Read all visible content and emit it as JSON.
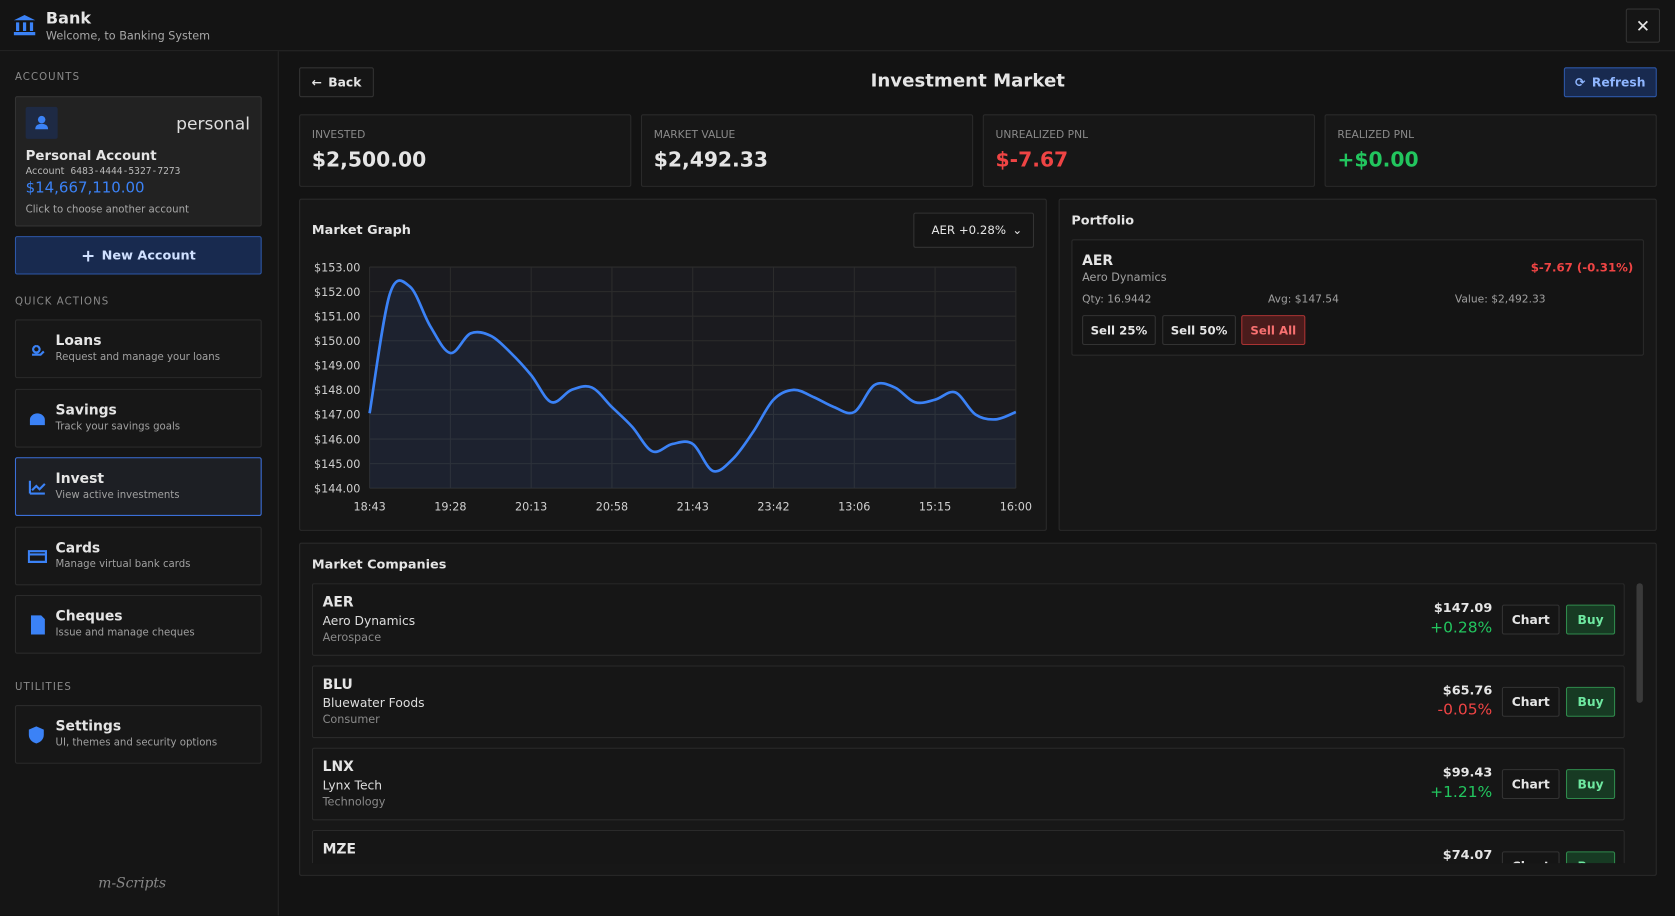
{
  "header": {
    "title": "Bank",
    "subtitle": "Welcome, to Banking System"
  },
  "sidebar": {
    "accounts_label": "ACCOUNTS",
    "account": {
      "type": "personal",
      "name": "Personal Account",
      "number_label": "Account",
      "number": "6483-4444-5327-7273",
      "balance": "$14,667,110.00",
      "hint": "Click to choose another account"
    },
    "new_account": "New Account",
    "quick_actions_label": "QUICK ACTIONS",
    "actions": [
      {
        "title": "Loans",
        "desc": "Request and manage your loans"
      },
      {
        "title": "Savings",
        "desc": "Track your savings goals"
      },
      {
        "title": "Invest",
        "desc": "View active investments"
      },
      {
        "title": "Cards",
        "desc": "Manage virtual bank cards"
      },
      {
        "title": "Cheques",
        "desc": "Issue and manage cheques"
      }
    ],
    "utilities_label": "UTILITIES",
    "settings": {
      "title": "Settings",
      "desc": "UI, themes and security options"
    },
    "footer": "m-Scripts"
  },
  "main": {
    "back": "Back",
    "title": "Investment Market",
    "refresh": "Refresh",
    "stats": [
      {
        "label": "INVESTED",
        "value": "$2,500.00",
        "color": "#e5e5e5"
      },
      {
        "label": "MARKET VALUE",
        "value": "$2,492.33",
        "color": "#e5e5e5"
      },
      {
        "label": "UNREALIZED PNL",
        "value": "$-7.67",
        "color": "#ef4444"
      },
      {
        "label": "REALIZED PNL",
        "value": "+$0.00",
        "color": "#22c55e"
      }
    ],
    "selector": "AER +0.28%",
    "portfolio": {
      "title": "Portfolio",
      "symbol": "AER",
      "name": "Aero Dynamics",
      "pnl": "$-7.67 (-0.31%)",
      "qty": "Qty: 16.9442",
      "avg": "Avg: $147.54",
      "value": "Value: $2,492.33",
      "buttons": [
        "Sell 25%",
        "Sell 50%",
        "Sell All"
      ]
    },
    "market": {
      "title": "Market Companies",
      "chart_button": "Chart",
      "buy_button": "Buy",
      "companies": [
        {
          "symbol": "AER",
          "name": "Aero Dynamics",
          "sector": "Aerospace",
          "price": "$147.09",
          "change": "+0.28%",
          "color": "#22c55e"
        },
        {
          "symbol": "BLU",
          "name": "Bluewater Foods",
          "sector": "Consumer",
          "price": "$65.76",
          "change": "-0.05%",
          "color": "#ef4444"
        },
        {
          "symbol": "LNX",
          "name": "Lynx Tech",
          "sector": "Technology",
          "price": "$99.43",
          "change": "+1.21%",
          "color": "#22c55e"
        },
        {
          "symbol": "MZE",
          "price": "$74.07"
        }
      ]
    }
  },
  "chart_data": {
    "type": "line",
    "title": "Market Graph",
    "categories": [
      "18:43",
      null,
      null,
      null,
      "19:28",
      null,
      null,
      null,
      "20:13",
      null,
      null,
      null,
      "20:58",
      null,
      null,
      null,
      "21:43",
      null,
      null,
      null,
      "23:42",
      null,
      null,
      null,
      "13:06",
      null,
      null,
      null,
      "15:15",
      null,
      null,
      null,
      "16:00"
    ],
    "series": [
      {
        "name": "AER",
        "color": "#3b82f6",
        "values": [
          147.05,
          151.9,
          152.2,
          150.6,
          149.5,
          150.3,
          150.2,
          149.5,
          148.6,
          147.5,
          148.0,
          148.1,
          147.3,
          146.5,
          145.5,
          145.8,
          145.8,
          144.7,
          145.2,
          146.3,
          147.6,
          148.0,
          147.7,
          147.3,
          147.1,
          148.2,
          148.1,
          147.5,
          147.6,
          147.9,
          147.0,
          146.8,
          147.1
        ]
      }
    ],
    "ylim": [
      144,
      153
    ],
    "yticks": [
      {
        "value": 153,
        "label": "$153.00"
      },
      {
        "value": 152,
        "label": "$152.00"
      },
      {
        "value": 151,
        "label": "$151.00"
      },
      {
        "value": 150,
        "label": "$150.00"
      },
      {
        "value": 149,
        "label": "$149.00"
      },
      {
        "value": 148,
        "label": "$148.00"
      },
      {
        "value": 147,
        "label": "$147.00"
      },
      {
        "value": 146,
        "label": "$146.00"
      },
      {
        "value": 145,
        "label": "$145.00"
      },
      {
        "value": 144,
        "label": "$144.00"
      }
    ],
    "grid": true
  }
}
